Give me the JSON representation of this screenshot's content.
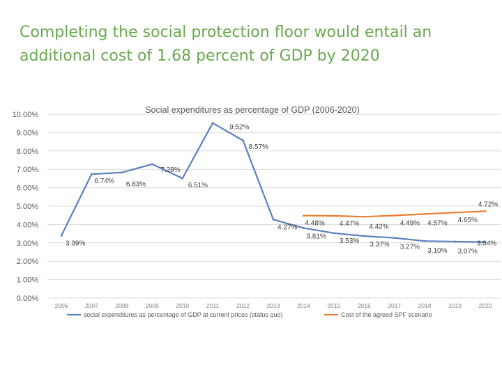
{
  "slide": {
    "title_line1": "Completing the social protection floor would entail an",
    "title_line2": "additional cost of 1.68 percent of GDP by 2020"
  },
  "chart_data": {
    "type": "line",
    "title": "Social expenditures as percentage of GDP (2006-2020)",
    "xlabel": "",
    "ylabel": "",
    "ylim": [
      0,
      10
    ],
    "yticks": [
      "0.00%",
      "1.00%",
      "2.00%",
      "3.00%",
      "4.00%",
      "5.00%",
      "6.00%",
      "7.00%",
      "8.00%",
      "9.00%",
      "10.00%"
    ],
    "categories": [
      "2006",
      "2007",
      "2008",
      "2009",
      "2010",
      "2011",
      "2012",
      "2013",
      "2014",
      "2015",
      "2016",
      "2017",
      "2018",
      "2019",
      "2020"
    ],
    "grid": true,
    "legend_position": "bottom",
    "series": [
      {
        "name": "social expenditures as percentage of GDP at current prices (status quo)",
        "color": "#5b7fbf",
        "values": [
          3.39,
          6.74,
          6.83,
          7.28,
          6.51,
          9.52,
          8.57,
          4.27,
          3.81,
          3.53,
          3.37,
          3.27,
          3.1,
          3.07,
          3.04
        ],
        "labels": [
          "3.39%",
          "6.74%",
          "6.83%",
          "7.28%",
          "6.51%",
          "9.52%",
          "8.57%",
          "4.27%",
          "3.81%",
          "3.53%",
          "3.37%",
          "3.27%",
          "3.10%",
          "3.07%",
          "3.04%"
        ]
      },
      {
        "name": "Cost of the agreed SPF scenario",
        "color": "#ed7d31",
        "values": [
          null,
          null,
          null,
          null,
          null,
          null,
          null,
          null,
          4.48,
          4.47,
          4.42,
          4.49,
          4.57,
          4.65,
          4.72
        ],
        "labels": [
          null,
          null,
          null,
          null,
          null,
          null,
          null,
          null,
          "4.48%",
          "4.47%",
          "4.42%",
          "4.49%",
          "4.57%",
          "4.65%",
          "4.72%"
        ]
      }
    ]
  }
}
